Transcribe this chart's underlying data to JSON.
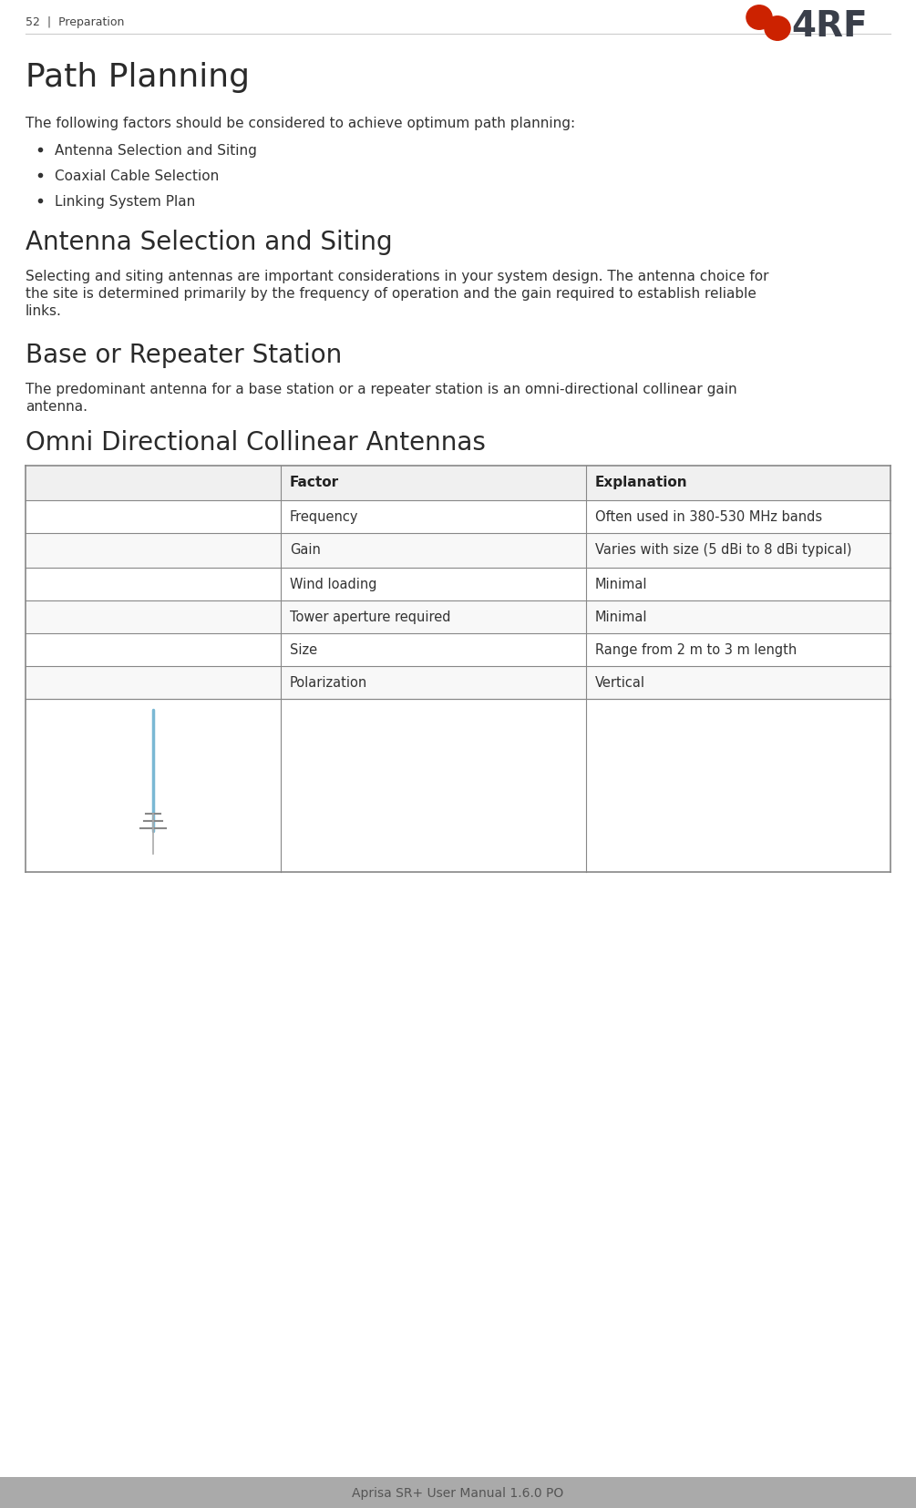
{
  "page_width": 10.05,
  "page_height": 16.56,
  "dpi": 100,
  "bg_color": "#ffffff",
  "header_text": "52  |  Preparation",
  "header_color": "#444444",
  "footer_bg": "#aaaaaa",
  "footer_text": "Aprisa SR+ User Manual 1.6.0 PO",
  "footer_text_color": "#555555",
  "logo_4rf_color": "#3a3f4a",
  "logo_dot_color": "#cc2200",
  "title_main": "Path Planning",
  "title_main_color": "#2a2a2a",
  "section_intro": "The following factors should be considered to achieve optimum path planning:",
  "bullets": [
    "Antenna Selection and Siting",
    "Coaxial Cable Selection",
    "Linking System Plan"
  ],
  "section1_title": "Antenna Selection and Siting",
  "section1_body_lines": [
    "Selecting and siting antennas are important considerations in your system design. The antenna choice for",
    "the site is determined primarily by the frequency of operation and the gain required to establish reliable",
    "links."
  ],
  "section2_title": "Base or Repeater Station",
  "section2_body_lines": [
    "The predominant antenna for a base station or a repeater station is an omni-directional collinear gain",
    "antenna."
  ],
  "section3_title": "Omni Directional Collinear Antennas",
  "table_headers": [
    "Factor",
    "Explanation"
  ],
  "table_rows": [
    [
      "Frequency",
      "Often used in 380-530 MHz bands"
    ],
    [
      "Gain",
      "Varies with size (5 dBi to 8 dBi typical)"
    ],
    [
      "Wind loading",
      "Minimal"
    ],
    [
      "Tower aperture required",
      "Minimal"
    ],
    [
      "Size",
      "Range from 2 m to 3 m length"
    ],
    [
      "Polarization",
      "Vertical"
    ]
  ],
  "table_border_color": "#888888",
  "antenna_color": "#7ab8d4",
  "section_title_color": "#2a2a2a",
  "body_text_color": "#333333",
  "header_line_color": "#cccccc"
}
